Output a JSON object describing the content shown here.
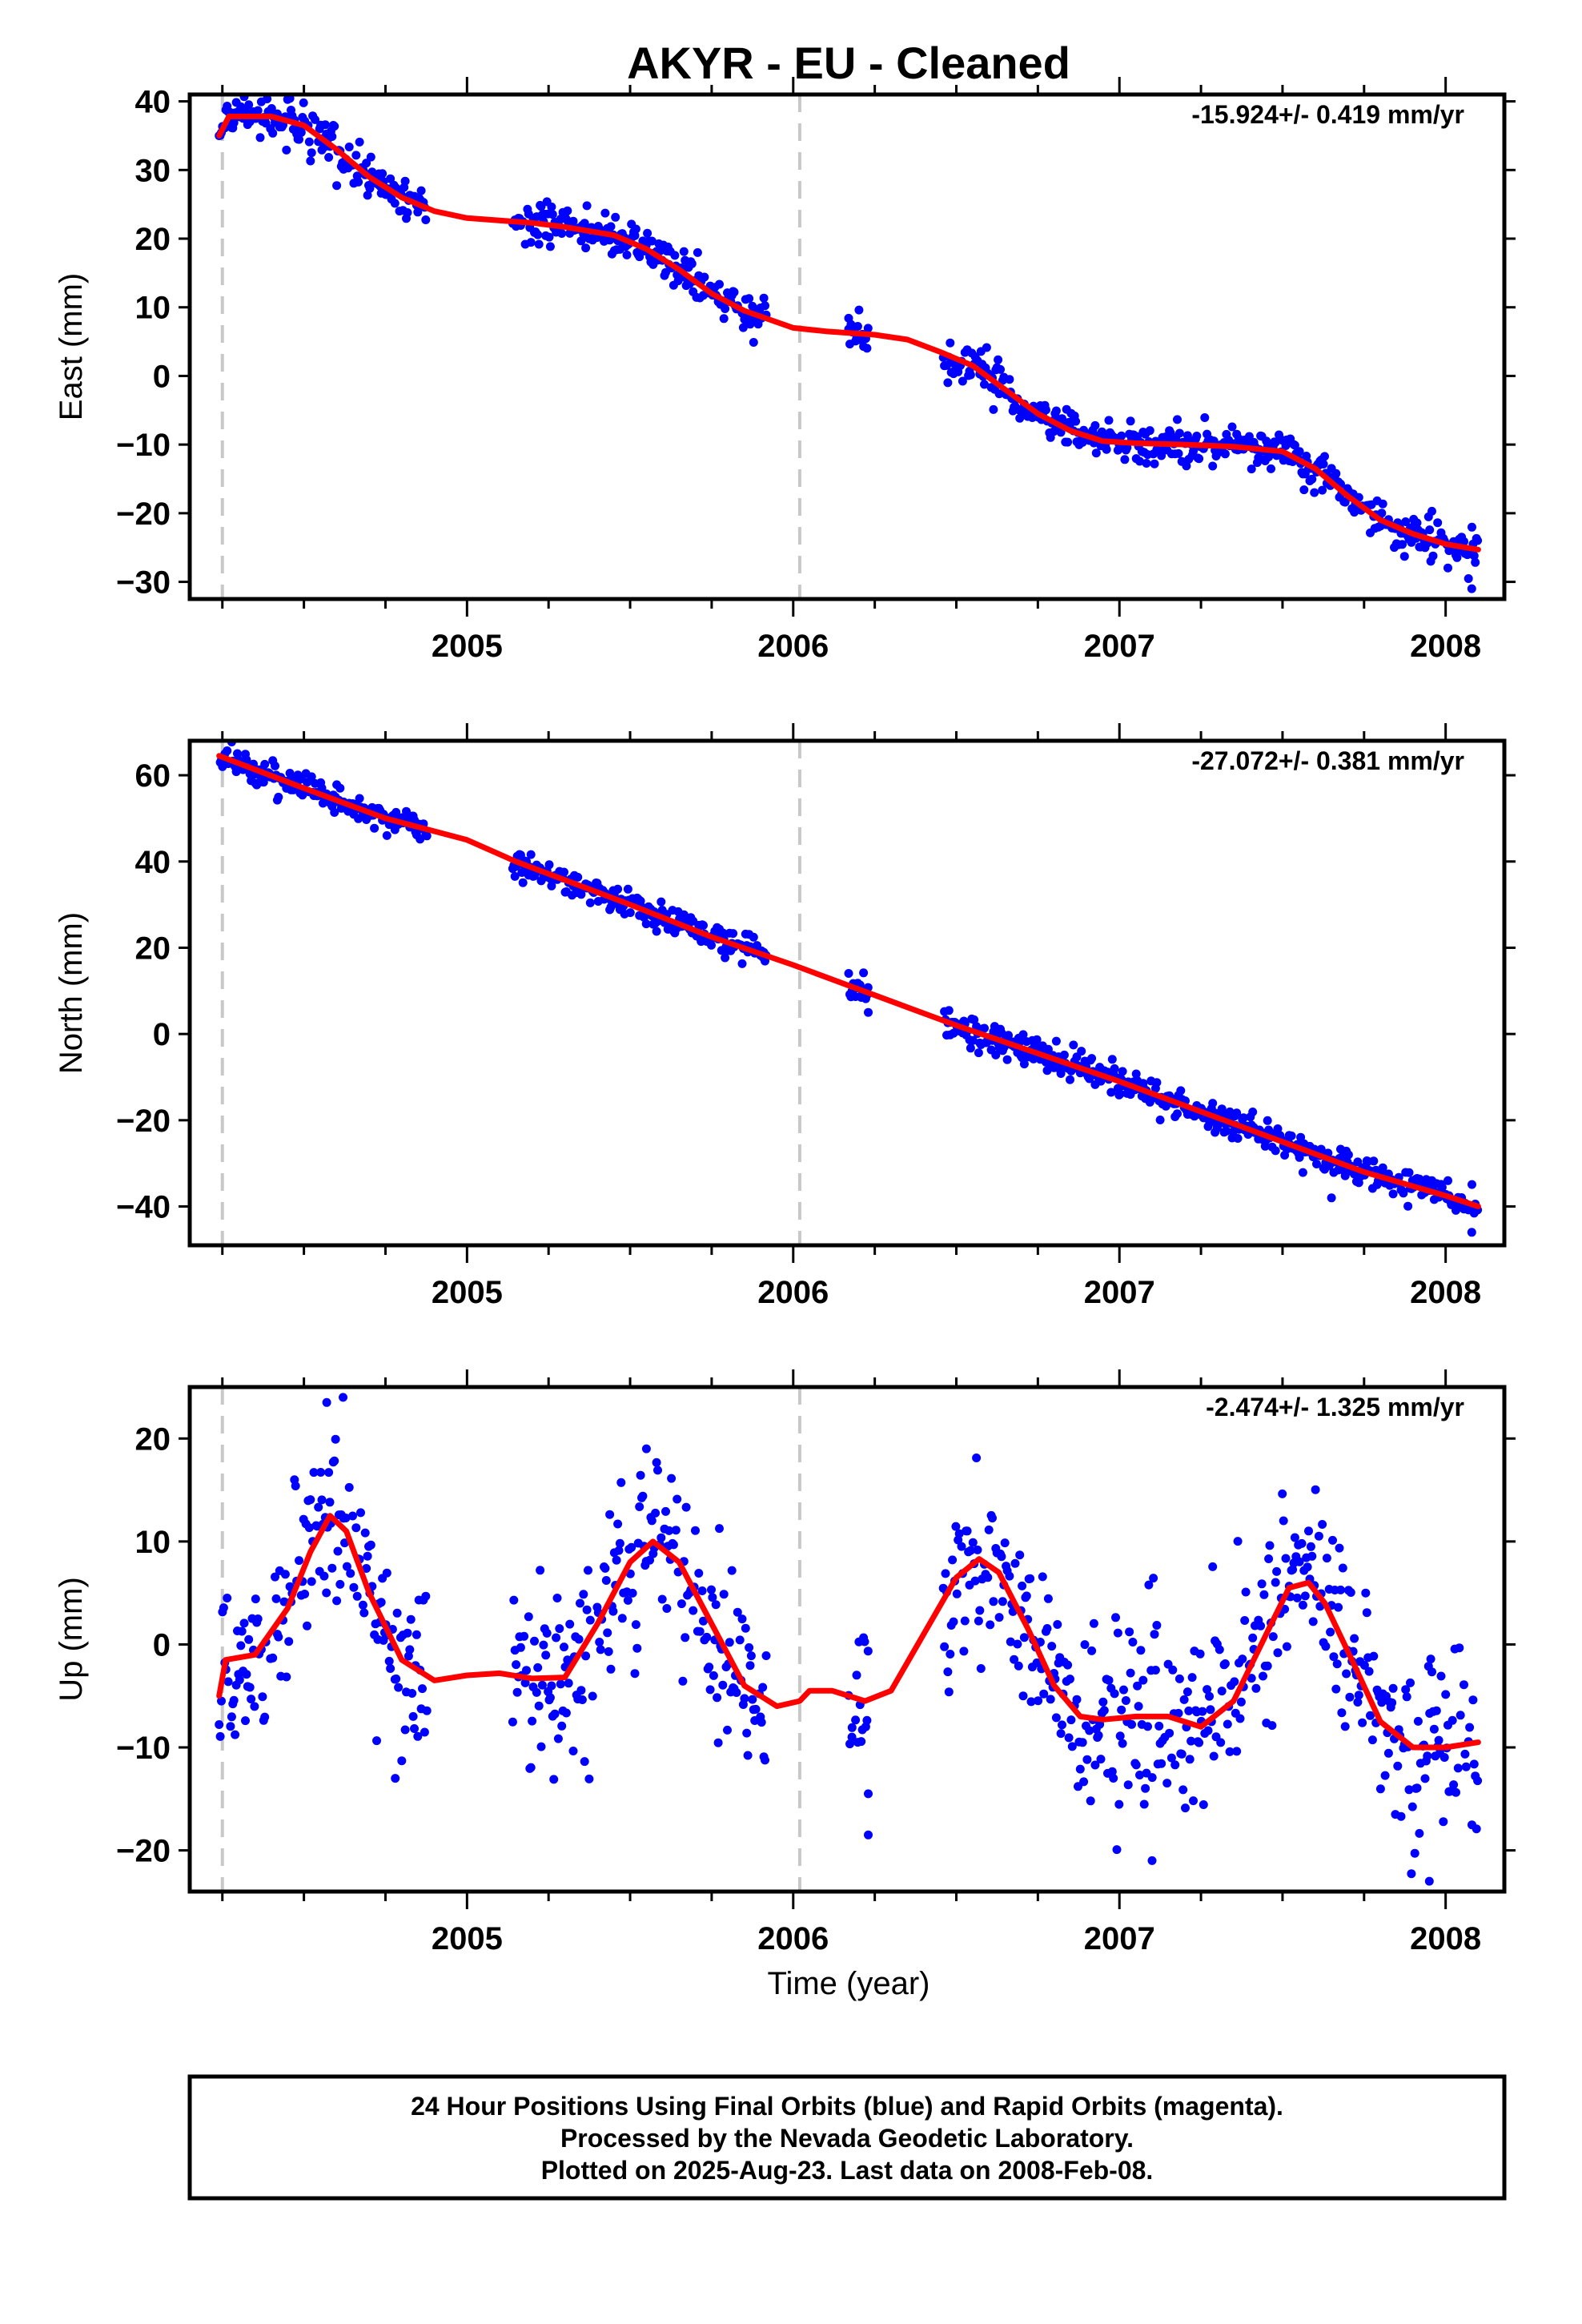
{
  "title": "AKYR  - EU - Cleaned",
  "xlabel": "Time (year)",
  "footer": {
    "line1": "24 Hour Positions Using Final Orbits (blue) and Rapid Orbits (magenta).",
    "line2": "Processed by the Nevada Geodetic Laboratory.",
    "line3": "Plotted on 2025-Aug-23. Last data on 2008-Feb-08."
  },
  "colors": {
    "final_orbits": "#0000ff",
    "fit": "#ff0000",
    "dashed_lines": "#c8c8c8"
  },
  "chart_data": [
    {
      "type": "scatter",
      "component": "east",
      "ylabel": "East (mm)",
      "rate": "-15.924+/- 0.419 mm/yr",
      "xlim": [
        2004.15,
        2008.18
      ],
      "ylim": [
        -32.5,
        41
      ],
      "xticks": [
        2005,
        2006,
        2007,
        2008
      ],
      "yticks": [
        40,
        30,
        20,
        10,
        0,
        -10,
        -20,
        -30
      ],
      "dashed_verticals": [
        2004.25,
        2006.02
      ],
      "fit": [
        [
          2004.24,
          35
        ],
        [
          2004.27,
          37.8
        ],
        [
          2004.4,
          37.8
        ],
        [
          2004.5,
          36.5
        ],
        [
          2004.6,
          33
        ],
        [
          2004.7,
          29
        ],
        [
          2004.8,
          26
        ],
        [
          2004.9,
          24
        ],
        [
          2005.0,
          23
        ],
        [
          2005.2,
          22.3
        ],
        [
          2005.3,
          21.7
        ],
        [
          2005.45,
          20.5
        ],
        [
          2005.55,
          18.5
        ],
        [
          2005.65,
          15.5
        ],
        [
          2005.75,
          12
        ],
        [
          2005.85,
          9.5
        ],
        [
          2006.0,
          7
        ],
        [
          2006.1,
          6.5
        ],
        [
          2006.25,
          6
        ],
        [
          2006.35,
          5.3
        ],
        [
          2006.45,
          3.5
        ],
        [
          2006.55,
          1.5
        ],
        [
          2006.65,
          -2
        ],
        [
          2006.75,
          -5.5
        ],
        [
          2006.85,
          -8
        ],
        [
          2006.95,
          -9.5
        ],
        [
          2007.05,
          -9.8
        ],
        [
          2007.2,
          -10
        ],
        [
          2007.35,
          -10.3
        ],
        [
          2007.5,
          -11
        ],
        [
          2007.6,
          -13.5
        ],
        [
          2007.7,
          -17.5
        ],
        [
          2007.8,
          -21
        ],
        [
          2007.9,
          -23
        ],
        [
          2008.0,
          -24.5
        ],
        [
          2008.1,
          -25.3
        ]
      ],
      "segments": [
        [
          2004.24,
          2004.88
        ],
        [
          2005.14,
          2005.92
        ],
        [
          2006.17,
          2006.23
        ],
        [
          2006.46,
          2008.1
        ]
      ],
      "scatter": 1.5,
      "outliers": [
        [
          2008.08,
          -31
        ],
        [
          2006.17,
          8.4
        ]
      ]
    },
    {
      "type": "scatter",
      "component": "north",
      "ylabel": "North (mm)",
      "rate": "-27.072+/- 0.381 mm/yr",
      "xlim": [
        2004.15,
        2008.18
      ],
      "ylim": [
        -49,
        68
      ],
      "xticks": [
        2005,
        2006,
        2007,
        2008
      ],
      "yticks": [
        60,
        40,
        20,
        0,
        -20,
        -40
      ],
      "dashed_verticals": [
        2004.25,
        2006.02
      ],
      "fit": [
        [
          2004.24,
          64.5
        ],
        [
          2004.5,
          57
        ],
        [
          2004.75,
          50
        ],
        [
          2005.0,
          45
        ],
        [
          2005.15,
          40
        ],
        [
          2005.5,
          30
        ],
        [
          2005.75,
          22.5
        ],
        [
          2006.0,
          16
        ],
        [
          2006.25,
          9
        ],
        [
          2006.5,
          2
        ],
        [
          2006.75,
          -4.5
        ],
        [
          2007.0,
          -11
        ],
        [
          2007.25,
          -18
        ],
        [
          2007.5,
          -25
        ],
        [
          2007.75,
          -32
        ],
        [
          2008.0,
          -37.5
        ],
        [
          2008.1,
          -40
        ]
      ],
      "segments": [
        [
          2004.24,
          2004.88
        ],
        [
          2005.14,
          2005.92
        ],
        [
          2006.17,
          2006.23
        ],
        [
          2006.46,
          2008.1
        ]
      ],
      "scatter": 1.7,
      "outliers": [
        [
          2006.23,
          5
        ],
        [
          2007.65,
          -38
        ],
        [
          2008.08,
          -46
        ]
      ]
    },
    {
      "type": "scatter",
      "component": "up",
      "ylabel": "Up (mm)",
      "rate": "-2.474+/- 1.325 mm/yr",
      "xlim": [
        2004.15,
        2008.18
      ],
      "ylim": [
        -24,
        25
      ],
      "xticks": [
        2005,
        2006,
        2007,
        2008
      ],
      "yticks": [
        20,
        10,
        0,
        -10,
        -20
      ],
      "dashed_verticals": [
        2004.25,
        2006.02
      ],
      "fit": [
        [
          2004.24,
          -5
        ],
        [
          2004.26,
          -1.5
        ],
        [
          2004.35,
          -1
        ],
        [
          2004.45,
          3.5
        ],
        [
          2004.52,
          9
        ],
        [
          2004.58,
          12.5
        ],
        [
          2004.63,
          11
        ],
        [
          2004.7,
          5
        ],
        [
          2004.8,
          -1.5
        ],
        [
          2004.9,
          -3.5
        ],
        [
          2005.0,
          -3
        ],
        [
          2005.1,
          -2.8
        ],
        [
          2005.2,
          -3.3
        ],
        [
          2005.3,
          -3.2
        ],
        [
          2005.4,
          2
        ],
        [
          2005.5,
          8
        ],
        [
          2005.57,
          10
        ],
        [
          2005.65,
          8
        ],
        [
          2005.75,
          2
        ],
        [
          2005.85,
          -4
        ],
        [
          2005.95,
          -6
        ],
        [
          2006.02,
          -5.5
        ],
        [
          2006.05,
          -4.5
        ],
        [
          2006.12,
          -4.5
        ],
        [
          2006.22,
          -5.5
        ],
        [
          2006.3,
          -4.5
        ],
        [
          2006.4,
          1
        ],
        [
          2006.5,
          6.5
        ],
        [
          2006.57,
          8.3
        ],
        [
          2006.63,
          7
        ],
        [
          2006.72,
          1.5
        ],
        [
          2006.8,
          -4
        ],
        [
          2006.88,
          -7
        ],
        [
          2006.95,
          -7.3
        ],
        [
          2007.05,
          -7
        ],
        [
          2007.15,
          -7
        ],
        [
          2007.25,
          -8
        ],
        [
          2007.35,
          -5.5
        ],
        [
          2007.45,
          1
        ],
        [
          2007.52,
          5.5
        ],
        [
          2007.58,
          6
        ],
        [
          2007.63,
          4
        ],
        [
          2007.72,
          -2
        ],
        [
          2007.8,
          -7.5
        ],
        [
          2007.9,
          -10
        ],
        [
          2008.0,
          -10
        ],
        [
          2008.1,
          -9.5
        ]
      ],
      "segments": [
        [
          2004.24,
          2004.88
        ],
        [
          2005.14,
          2005.92
        ],
        [
          2006.17,
          2006.23
        ],
        [
          2006.46,
          2008.1
        ]
      ],
      "scatter": 4.5,
      "outliers": [
        [
          2004.57,
          23.5
        ],
        [
          2004.62,
          24
        ],
        [
          2004.78,
          -13
        ],
        [
          2005.55,
          19
        ],
        [
          2006.18,
          -9
        ],
        [
          2006.23,
          -18.5
        ],
        [
          2006.23,
          -14.5
        ],
        [
          2007.1,
          -21
        ],
        [
          2007.95,
          -23
        ]
      ]
    }
  ]
}
